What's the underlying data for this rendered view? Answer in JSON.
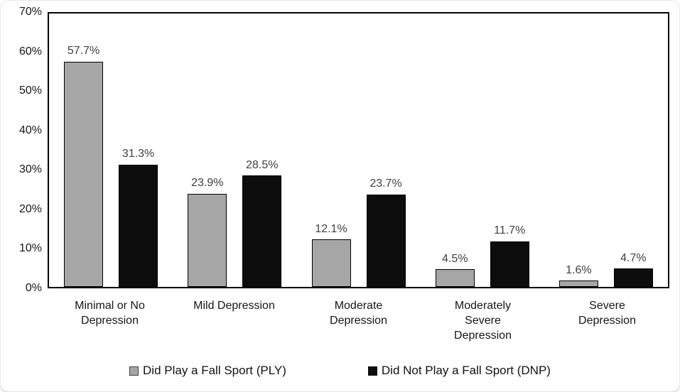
{
  "chart_data": {
    "type": "bar",
    "title": "",
    "xlabel": "",
    "ylabel": "",
    "ylim": [
      0,
      70
    ],
    "ytick_step": 10,
    "yticks": [
      "0%",
      "10%",
      "20%",
      "30%",
      "40%",
      "50%",
      "60%",
      "70%"
    ],
    "grid": false,
    "legend_position": "bottom",
    "categories": [
      "Minimal or No Depression",
      "Mild Depression",
      "Moderate Depression",
      "Moderately Severe Depression",
      "Severe Depression"
    ],
    "category_label_lines": [
      [
        "Minimal or No",
        "Depression"
      ],
      [
        "Mild Depression"
      ],
      [
        "Moderate",
        "Depression"
      ],
      [
        "Moderately",
        "Severe",
        "Depression"
      ],
      [
        "Severe",
        "Depression"
      ]
    ],
    "series": [
      {
        "key": "ply",
        "name": "Did Play a Fall Sport (PLY)",
        "color": "#a6a6a6",
        "marker_border": "#3f3f3f",
        "values": [
          57.7,
          23.9,
          12.1,
          4.5,
          1.6
        ],
        "labels": [
          "57.7%",
          "23.9%",
          "12.1%",
          "4.5%",
          "1.6%"
        ]
      },
      {
        "key": "dnp",
        "name": "Did Not Play a Fall Sport (DNP)",
        "color": "#0d0d0d",
        "marker_border": "#0d0d0d",
        "values": [
          31.3,
          28.5,
          23.7,
          11.7,
          4.7
        ],
        "labels": [
          "31.3%",
          "28.5%",
          "23.7%",
          "11.7%",
          "4.7%"
        ]
      }
    ],
    "bar_border_color": "#000000",
    "data_label_color": "#404040"
  }
}
